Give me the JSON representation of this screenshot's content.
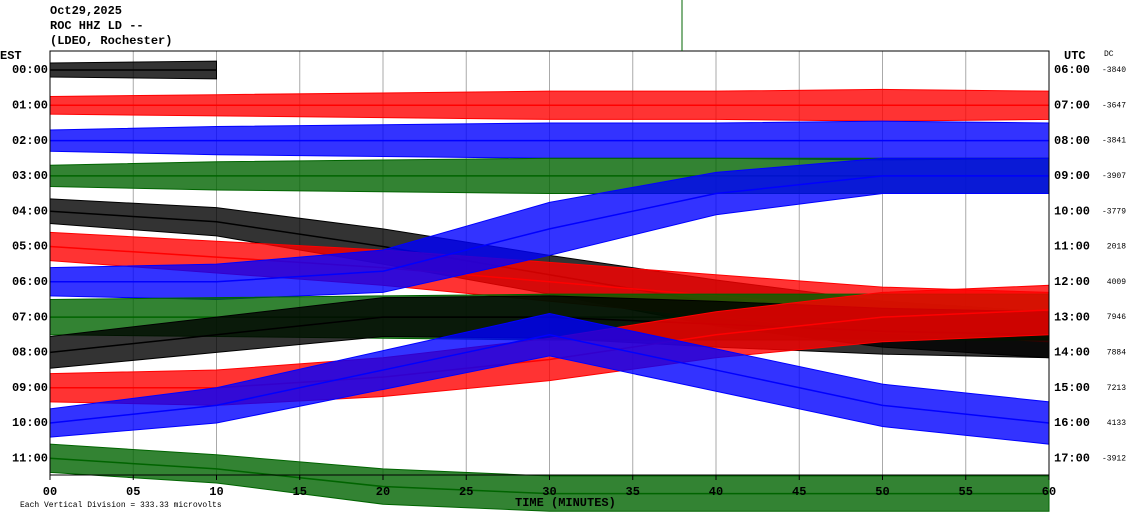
{
  "chart_data": {
    "type": "helicorder",
    "date": "Oct29,2025",
    "station": "ROC HHZ LD --",
    "location": "(LDEO, Rochester)",
    "left_zone": "EST",
    "right_zone": "UTC",
    "dc_header": "DC",
    "xlabel": "TIME (MINUTES)",
    "scale_note": "Each Vertical Division = 333.33 microvolts",
    "xlim": [
      0,
      60
    ],
    "xticks": [
      {
        "value": 0,
        "label": "00"
      },
      {
        "value": 5,
        "label": "05"
      },
      10,
      15,
      20,
      25,
      30,
      35,
      40,
      45,
      50,
      55,
      60
    ],
    "grid": true,
    "sample_minutes": [
      0,
      10,
      20,
      30,
      40,
      50,
      60
    ],
    "rows": [
      {
        "est": "00:00",
        "utc": "06:00",
        "dc": -3840,
        "color": "#000000",
        "offset": [
          0,
          0,
          null,
          null,
          null,
          null,
          null
        ],
        "amplitude": [
          0.4,
          0.5,
          null,
          null,
          null,
          null,
          null
        ]
      },
      {
        "est": "01:00",
        "utc": "07:00",
        "dc": -3647,
        "color": "#ff0000",
        "offset": [
          0,
          0,
          0,
          0,
          0,
          0,
          0
        ],
        "amplitude": [
          0.5,
          0.6,
          0.7,
          0.8,
          0.8,
          0.9,
          0.8
        ]
      },
      {
        "est": "02:00",
        "utc": "08:00",
        "dc": -3841,
        "color": "#0000ff",
        "offset": [
          0,
          0,
          0,
          0,
          0,
          0,
          0
        ],
        "amplitude": [
          0.6,
          0.8,
          0.9,
          1.0,
          1.0,
          1.1,
          1.0
        ]
      },
      {
        "est": "03:00",
        "utc": "09:00",
        "dc": -3907,
        "color": "#006400",
        "offset": [
          0,
          0,
          0,
          0,
          0,
          0,
          0
        ],
        "amplitude": [
          0.6,
          0.8,
          0.9,
          1.0,
          1.0,
          1.0,
          1.0
        ]
      },
      {
        "est": "04:00",
        "utc": "10:00",
        "dc": -3779,
        "color": "#000000",
        "offset": [
          0,
          0.3,
          1,
          1.8,
          2.6,
          3.2,
          3.5
        ],
        "amplitude": [
          0.7,
          0.8,
          1,
          1.1,
          1.3,
          1.3,
          1.3
        ]
      },
      {
        "est": "05:00",
        "utc": "11:00",
        "dc": 2018,
        "color": "#ff0000",
        "offset": [
          0,
          0.3,
          0.6,
          1,
          1.4,
          1.8,
          2
        ],
        "amplitude": [
          0.8,
          0.9,
          1,
          1.1,
          1.2,
          1.3,
          1.4
        ]
      },
      {
        "est": "06:00",
        "utc": "12:00",
        "dc": 4009,
        "color": "#0000ff",
        "offset": [
          0,
          0,
          -0.3,
          -1.5,
          -2.5,
          -3,
          -3
        ],
        "amplitude": [
          0.8,
          1,
          1.2,
          1.5,
          1.2,
          1.0,
          1.0
        ]
      },
      {
        "est": "07:00",
        "utc": "13:00",
        "dc": 7946,
        "color": "#006400",
        "offset": [
          0,
          0,
          0,
          0,
          0,
          0,
          0
        ],
        "amplitude": [
          1,
          1.1,
          1.2,
          1.3,
          1.3,
          1.3,
          1.3
        ]
      },
      {
        "est": "08:00",
        "utc": "14:00",
        "dc": 7884,
        "color": "#000000",
        "offset": [
          0,
          -0.5,
          -1,
          -1,
          -0.8,
          -0.6,
          -0.5
        ],
        "amplitude": [
          0.9,
          1,
          1.1,
          1.2,
          1.3,
          1.3,
          1.3
        ]
      },
      {
        "est": "09:00",
        "utc": "15:00",
        "dc": 7213,
        "color": "#ff0000",
        "offset": [
          0,
          0,
          -0.3,
          -0.8,
          -1.5,
          -2,
          -2.2
        ],
        "amplitude": [
          0.8,
          1,
          1.1,
          1.2,
          1.3,
          1.4,
          1.4
        ]
      },
      {
        "est": "10:00",
        "utc": "16:00",
        "dc": 4133,
        "color": "#0000ff",
        "offset": [
          0,
          -0.5,
          -1.5,
          -2.5,
          -1.5,
          -0.5,
          0
        ],
        "amplitude": [
          0.8,
          1,
          1.1,
          1.2,
          1.2,
          1.2,
          1.2
        ]
      },
      {
        "est": "11:00",
        "utc": "17:00",
        "dc": -3912,
        "color": "#006400",
        "offset": [
          0,
          0.3,
          0.8,
          1,
          1,
          1,
          1
        ],
        "amplitude": [
          0.8,
          0.8,
          1,
          1,
          1,
          1,
          1
        ]
      }
    ]
  }
}
